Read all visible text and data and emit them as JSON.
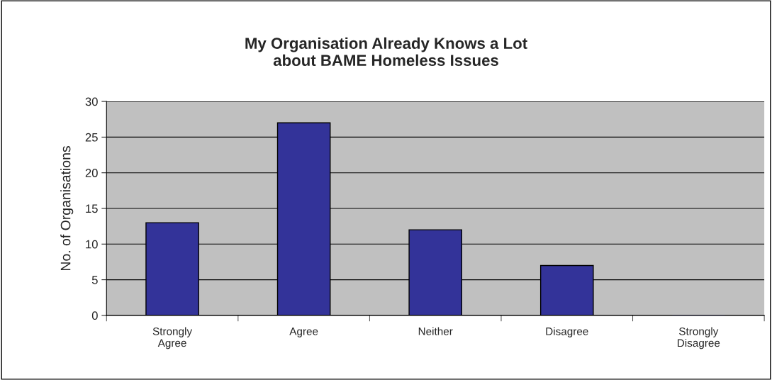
{
  "chart_data": {
    "type": "bar",
    "title": "My Organisation Already Knows a Lot\nabout BAME Homeless Issues",
    "ylabel": "No. of Organisations",
    "categories": [
      "Strongly\nAgree",
      "Agree",
      "Neither",
      "Disagree",
      "Strongly\nDisagree"
    ],
    "values": [
      13,
      27,
      12,
      7,
      0
    ],
    "color": "#333399",
    "ylim": [
      0,
      30
    ],
    "yticks": [
      0,
      5,
      10,
      15,
      20,
      25,
      30
    ],
    "grid": "y",
    "legend": false
  }
}
